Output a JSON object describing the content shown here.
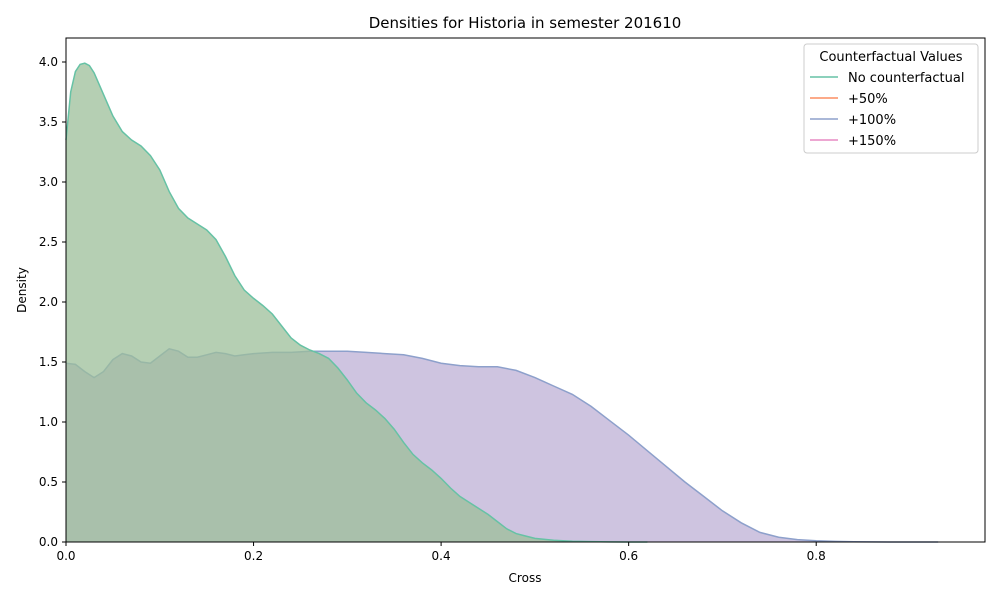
{
  "chart_data": {
    "type": "area",
    "title": "Densities for Historia in semester 201610",
    "xlabel": "Cross",
    "ylabel": "Density",
    "xlim": [
      0.0,
      0.98
    ],
    "ylim": [
      0.0,
      4.2
    ],
    "xticks": [
      "0.0",
      "0.2",
      "0.4",
      "0.6",
      "0.8"
    ],
    "xtick_values": [
      0.0,
      0.2,
      0.4,
      0.6,
      0.8
    ],
    "yticks": [
      "0.0",
      "0.5",
      "1.0",
      "1.5",
      "2.0",
      "2.5",
      "3.0",
      "3.5",
      "4.0"
    ],
    "ytick_values": [
      0.0,
      0.5,
      1.0,
      1.5,
      2.0,
      2.5,
      3.0,
      3.5,
      4.0
    ],
    "grid": false,
    "legend": {
      "title": "Counterfactual Values",
      "placement": "top-right",
      "entries": [
        "No counterfactual",
        "+50%",
        "+100%",
        "+150%"
      ],
      "colors": [
        "#66c2a5",
        "#fc8d62",
        "#8da0cb",
        "#e78ac3"
      ]
    },
    "series": [
      {
        "name": "+100%",
        "color": "#8da0cb",
        "fill": "#bdb0d5",
        "x": [
          0.0,
          0.01,
          0.02,
          0.03,
          0.04,
          0.05,
          0.06,
          0.07,
          0.08,
          0.09,
          0.1,
          0.11,
          0.12,
          0.13,
          0.14,
          0.15,
          0.16,
          0.17,
          0.18,
          0.19,
          0.2,
          0.22,
          0.24,
          0.26,
          0.28,
          0.3,
          0.32,
          0.34,
          0.36,
          0.38,
          0.4,
          0.42,
          0.44,
          0.46,
          0.48,
          0.5,
          0.52,
          0.54,
          0.56,
          0.58,
          0.6,
          0.62,
          0.64,
          0.66,
          0.68,
          0.7,
          0.72,
          0.74,
          0.76,
          0.78,
          0.8,
          0.82,
          0.84,
          0.86,
          0.88,
          0.9,
          0.93
        ],
        "y": [
          1.49,
          1.48,
          1.42,
          1.37,
          1.42,
          1.52,
          1.57,
          1.55,
          1.5,
          1.49,
          1.55,
          1.61,
          1.59,
          1.54,
          1.54,
          1.56,
          1.58,
          1.57,
          1.55,
          1.56,
          1.57,
          1.58,
          1.58,
          1.59,
          1.59,
          1.59,
          1.58,
          1.57,
          1.56,
          1.53,
          1.49,
          1.47,
          1.46,
          1.46,
          1.43,
          1.37,
          1.3,
          1.23,
          1.13,
          1.01,
          0.89,
          0.76,
          0.63,
          0.5,
          0.38,
          0.26,
          0.16,
          0.08,
          0.04,
          0.02,
          0.01,
          0.005,
          0.002,
          0.001,
          0.0,
          0.0,
          0.0
        ]
      },
      {
        "name": "No counterfactual",
        "color": "#66c2a5",
        "fill": "#9cbf9a",
        "x": [
          0.0,
          0.005,
          0.01,
          0.015,
          0.02,
          0.025,
          0.03,
          0.04,
          0.05,
          0.06,
          0.07,
          0.08,
          0.09,
          0.1,
          0.11,
          0.12,
          0.13,
          0.14,
          0.15,
          0.16,
          0.17,
          0.18,
          0.19,
          0.2,
          0.21,
          0.22,
          0.23,
          0.24,
          0.25,
          0.26,
          0.27,
          0.28,
          0.29,
          0.3,
          0.31,
          0.32,
          0.33,
          0.34,
          0.35,
          0.36,
          0.37,
          0.38,
          0.39,
          0.4,
          0.41,
          0.42,
          0.43,
          0.44,
          0.45,
          0.46,
          0.47,
          0.48,
          0.49,
          0.5,
          0.52,
          0.54,
          0.56,
          0.58,
          0.6,
          0.62
        ],
        "y": [
          3.35,
          3.75,
          3.92,
          3.98,
          3.99,
          3.97,
          3.91,
          3.73,
          3.55,
          3.42,
          3.35,
          3.3,
          3.22,
          3.1,
          2.92,
          2.78,
          2.7,
          2.65,
          2.6,
          2.52,
          2.38,
          2.22,
          2.1,
          2.03,
          1.97,
          1.9,
          1.8,
          1.7,
          1.64,
          1.6,
          1.57,
          1.53,
          1.45,
          1.35,
          1.24,
          1.16,
          1.1,
          1.03,
          0.94,
          0.83,
          0.73,
          0.66,
          0.6,
          0.53,
          0.45,
          0.38,
          0.33,
          0.28,
          0.23,
          0.17,
          0.11,
          0.07,
          0.05,
          0.03,
          0.015,
          0.007,
          0.003,
          0.001,
          0.0,
          0.0
        ]
      }
    ]
  }
}
